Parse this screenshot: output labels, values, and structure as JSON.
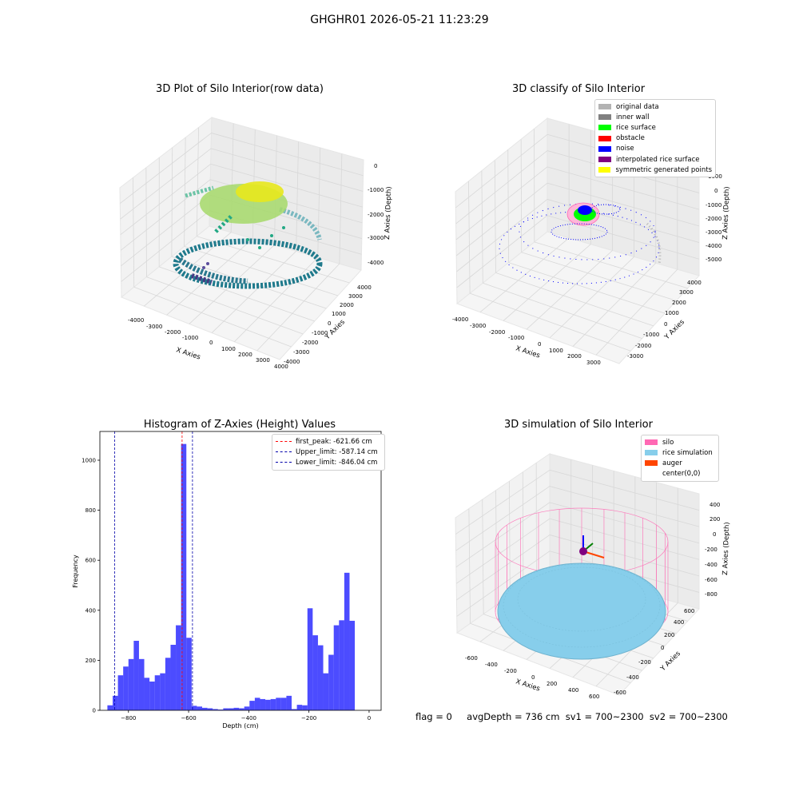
{
  "suptitle": "GHGHR01 2026-05-21 11:23:29",
  "panels": {
    "p1": {
      "title": "3D Plot of Silo Interior(row data)",
      "xlabel": "X Axies",
      "ylabel": "Y Axies",
      "zlabel": "Z Axies (Depth)",
      "xticks": [
        "-4000",
        "-3000",
        "-2000",
        "-1000",
        "0",
        "1000",
        "2000",
        "3000",
        "4000"
      ],
      "yticks": [
        "-4000",
        "-3000",
        "-2000",
        "-1000",
        "0",
        "1000",
        "2000",
        "3000",
        "4000"
      ],
      "zticks": [
        "0",
        "-1000",
        "-2000",
        "-3000",
        "-4000"
      ]
    },
    "p2": {
      "title": "3D classify of Silo Interior",
      "xlabel": "X Axies",
      "ylabel": "Y Axies",
      "zlabel": "Z Axies (Depth)",
      "xticks": [
        "-4000",
        "-3000",
        "-2000",
        "-1000",
        "0",
        "1000",
        "2000",
        "3000"
      ],
      "yticks": [
        "-3000",
        "-2000",
        "-1000",
        "0",
        "1000",
        "2000",
        "3000",
        "4000"
      ],
      "zticks": [
        "1000",
        "0",
        "-1000",
        "-2000",
        "-3000",
        "-4000",
        "-5000"
      ],
      "legend": [
        {
          "label": "original data",
          "color": "#b3b3b3"
        },
        {
          "label": "inner wall",
          "color": "#808080"
        },
        {
          "label": "rice surface",
          "color": "#00ff00"
        },
        {
          "label": "obstacle",
          "color": "#ff0000"
        },
        {
          "label": "noise",
          "color": "#0000ff"
        },
        {
          "label": "interpolated rice surface",
          "color": "#800080"
        },
        {
          "label": "symmetric generated points",
          "color": "#ffff00"
        }
      ]
    },
    "p3": {
      "title": "Histogram of Z-Axies (Height) Values",
      "legend": [
        {
          "label": "first_peak: -621.66 cm",
          "color": "#ff0000"
        },
        {
          "label": "Upper_limit: -587.14 cm",
          "color": "#0000aa"
        },
        {
          "label": "Lower_limit: -846.04 cm",
          "color": "#0000aa"
        }
      ]
    },
    "p4": {
      "title": "3D simulation of Silo Interior",
      "xlabel": "X Axies",
      "ylabel": "Y Axies",
      "zlabel": "Z Axies (Depth)",
      "xticks": [
        "-600",
        "-400",
        "-200",
        "0",
        "200",
        "400",
        "600"
      ],
      "yticks": [
        "-600",
        "-400",
        "-200",
        "0",
        "200",
        "400",
        "600"
      ],
      "zticks": [
        "400",
        "200",
        "0",
        "-200",
        "-400",
        "-600",
        "-800"
      ],
      "legend": [
        {
          "label": "silo",
          "color": "#ff69b4"
        },
        {
          "label": "rice simulation",
          "color": "#87ceeb"
        },
        {
          "label": "auger",
          "color": "#ff4500"
        },
        {
          "label": "center(0,0)",
          "color": "#ffffff"
        }
      ]
    }
  },
  "chart_data": {
    "type": "bar",
    "title": "Histogram of Z-Axies (Height) Values",
    "xlabel": "Depth (cm)",
    "ylabel": "Frequency",
    "xlim": [
      -895,
      40
    ],
    "ylim": [
      0,
      1115
    ],
    "xticks": [
      -800,
      -600,
      -400,
      -200,
      0
    ],
    "yticks": [
      0,
      200,
      400,
      600,
      800,
      1000
    ],
    "bin_width": 17.5,
    "bin_start": -870,
    "values": [
      20,
      58,
      140,
      175,
      205,
      278,
      205,
      130,
      115,
      140,
      148,
      210,
      262,
      340,
      1065,
      290,
      18,
      15,
      10,
      8,
      5,
      3,
      8,
      8,
      10,
      8,
      15,
      38,
      50,
      45,
      42,
      45,
      50,
      50,
      58,
      5,
      22,
      20,
      408,
      300,
      260,
      148,
      222,
      340,
      360,
      550,
      358
    ],
    "bar_color": "#0000ff",
    "vlines": [
      {
        "x": -621.66,
        "label": "first_peak: -621.66 cm",
        "color": "#ff0000"
      },
      {
        "x": -587.14,
        "label": "Upper_limit: -587.14 cm",
        "color": "#0000aa"
      },
      {
        "x": -846.04,
        "label": "Lower_limit: -846.04 cm",
        "color": "#0000aa"
      }
    ]
  },
  "footer": {
    "flag": "flag = 0",
    "avg": "avgDepth = 736 cm  sv1 = 700~2300  sv2 = 700~2300"
  }
}
